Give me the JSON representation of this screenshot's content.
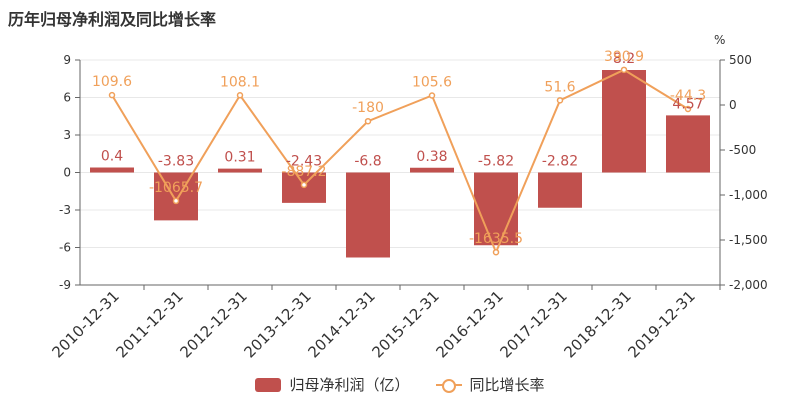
{
  "title": "历年归母净利润及同比增长率",
  "colors": {
    "bar": "#c0504d",
    "line": "#f0a05a",
    "axis": "#666666",
    "grid": "#e8e8e8"
  },
  "chart_data": {
    "type": "bar",
    "categories": [
      "2010-12-31",
      "2011-12-31",
      "2012-12-31",
      "2013-12-31",
      "2014-12-31",
      "2015-12-31",
      "2016-12-31",
      "2017-12-31",
      "2018-12-31",
      "2019-12-31"
    ],
    "series": [
      {
        "name": "归母净利润（亿）",
        "type": "bar",
        "axis": "left",
        "values": [
          0.4,
          -3.83,
          0.31,
          -2.43,
          -6.8,
          0.38,
          -5.82,
          -2.82,
          8.2,
          4.57
        ],
        "labels": [
          "0.4",
          "-3.83",
          "0.31",
          "-2.43",
          "-6.8",
          "0.38",
          "-5.82",
          "-2.82",
          "8.2",
          "4.57"
        ]
      },
      {
        "name": "同比增长率",
        "type": "line",
        "axis": "right",
        "values": [
          109.6,
          -1065.7,
          108.1,
          -887.2,
          -180,
          105.6,
          -1635.5,
          51.6,
          390.9,
          -44.3
        ],
        "labels": [
          "109.6",
          "-1065.7",
          "108.1",
          "-887.2",
          "-180",
          "105.6",
          "-1635.5",
          "51.6",
          "390.9",
          "-44.3"
        ]
      }
    ],
    "y_left": {
      "ylim": [
        -9,
        9
      ],
      "ticks": [
        "9",
        "6",
        "3",
        "0",
        "-3",
        "-6",
        "-9"
      ],
      "tick_values": [
        9,
        6,
        3,
        0,
        -3,
        -6,
        -9
      ]
    },
    "y_right": {
      "ylim": [
        -2000,
        500
      ],
      "unit": "%",
      "ticks": [
        "500",
        "0",
        "-500",
        "-1,000",
        "-1,500",
        "-2,000"
      ],
      "tick_values": [
        500,
        0,
        -500,
        -1000,
        -1500,
        -2000
      ]
    },
    "legend": "bottom"
  }
}
